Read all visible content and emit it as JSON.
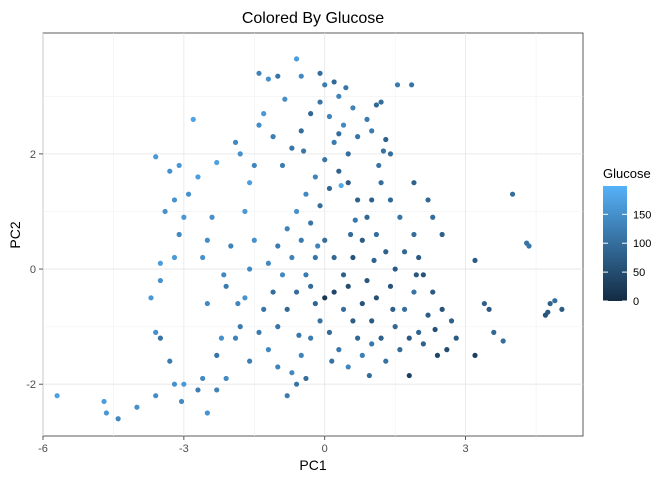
{
  "chart_data": {
    "type": "scatter",
    "title": "Colored By Glucose",
    "xlabel": "PC1",
    "ylabel": "PC2",
    "xlim": [
      -6,
      5.5
    ],
    "ylim": [
      -2.9,
      4.1
    ],
    "x_ticks": [
      -6,
      -3,
      0,
      3
    ],
    "x_tick_labels": [
      "-6",
      "-3",
      "0",
      "3"
    ],
    "y_ticks": [
      -2,
      0,
      2
    ],
    "y_tick_labels": [
      "-2",
      "0",
      "2"
    ],
    "grid": true,
    "legend": {
      "title": "Glucose",
      "position": "right",
      "range": [
        0,
        199
      ],
      "ticks": [
        0,
        50,
        100,
        150
      ],
      "tick_labels": [
        "0",
        "50",
        "100",
        "150"
      ],
      "color_low": "#132b43",
      "color_high": "#56b1f7"
    },
    "points": [
      [
        -5.7,
        -2.2,
        175
      ],
      [
        -4.7,
        -2.3,
        170
      ],
      [
        -4.65,
        -2.5,
        160
      ],
      [
        -4.4,
        -2.6,
        140
      ],
      [
        -4.0,
        -2.4,
        150
      ],
      [
        -3.6,
        -2.2,
        145
      ],
      [
        -3.2,
        -2.0,
        150
      ],
      [
        -3.0,
        -2.0,
        165
      ],
      [
        -3.05,
        -2.3,
        140
      ],
      [
        -2.5,
        -2.5,
        155
      ],
      [
        -2.3,
        -2.1,
        130
      ],
      [
        -2.1,
        -1.9,
        140
      ],
      [
        -3.3,
        -1.6,
        120
      ],
      [
        -3.5,
        -1.2,
        110
      ],
      [
        -3.6,
        -1.1,
        150
      ],
      [
        -3.7,
        -0.5,
        160
      ],
      [
        -3.5,
        -0.2,
        150
      ],
      [
        -3.5,
        0.1,
        170
      ],
      [
        -3.2,
        0.2,
        165
      ],
      [
        -3.1,
        0.6,
        140
      ],
      [
        -3.4,
        1.0,
        150
      ],
      [
        -3.0,
        0.9,
        160
      ],
      [
        -3.2,
        1.2,
        155
      ],
      [
        -2.9,
        1.3,
        150
      ],
      [
        -2.7,
        1.6,
        170
      ],
      [
        -3.3,
        1.7,
        150
      ],
      [
        -3.1,
        1.8,
        160
      ],
      [
        -3.6,
        1.95,
        165
      ],
      [
        -2.8,
        2.6,
        180
      ],
      [
        -2.3,
        1.85,
        175
      ],
      [
        -2.4,
        0.9,
        150
      ],
      [
        -2.5,
        0.5,
        145
      ],
      [
        -2.0,
        0.4,
        130
      ],
      [
        -2.1,
        -0.3,
        120
      ],
      [
        -2.5,
        -0.6,
        140
      ],
      [
        -2.2,
        -1.2,
        150
      ],
      [
        -2.3,
        -1.5,
        110
      ],
      [
        -1.9,
        -1.2,
        130
      ],
      [
        -2.6,
        -1.9,
        140
      ],
      [
        -2.7,
        -2.1,
        125
      ],
      [
        -1.8,
        -1.0,
        120
      ],
      [
        -1.7,
        -0.5,
        155
      ],
      [
        -1.6,
        0.0,
        140
      ],
      [
        -1.5,
        0.5,
        150
      ],
      [
        -1.7,
        1.0,
        160
      ],
      [
        -1.6,
        1.5,
        170
      ],
      [
        -1.8,
        2.0,
        150
      ],
      [
        -1.9,
        2.2,
        140
      ],
      [
        -1.4,
        2.5,
        145
      ],
      [
        -1.3,
        2.7,
        160
      ],
      [
        -1.4,
        3.4,
        130
      ],
      [
        -1.2,
        3.3,
        150
      ],
      [
        -1.0,
        3.35,
        110
      ],
      [
        -0.5,
        3.35,
        140
      ],
      [
        -0.6,
        3.65,
        170
      ],
      [
        -0.1,
        3.4,
        100
      ],
      [
        0.0,
        3.2,
        120
      ],
      [
        0.3,
        3.0,
        130
      ],
      [
        0.45,
        3.15,
        110
      ],
      [
        0.2,
        3.25,
        90
      ],
      [
        1.55,
        3.2,
        120
      ],
      [
        1.85,
        3.2,
        110
      ],
      [
        1.2,
        2.9,
        100
      ],
      [
        1.1,
        2.85,
        90
      ],
      [
        1.0,
        2.4,
        120
      ],
      [
        1.3,
        2.25,
        80
      ],
      [
        1.4,
        2.0,
        100
      ],
      [
        1.15,
        1.8,
        110
      ],
      [
        1.9,
        1.5,
        80
      ],
      [
        2.2,
        1.2,
        90
      ],
      [
        2.3,
        0.9,
        100
      ],
      [
        2.5,
        0.6,
        80
      ],
      [
        2.0,
        0.2,
        70
      ],
      [
        2.1,
        -0.1,
        60
      ],
      [
        2.3,
        -0.4,
        70
      ],
      [
        2.5,
        -0.7,
        60
      ],
      [
        2.7,
        -0.9,
        80
      ],
      [
        2.8,
        -1.2,
        70
      ],
      [
        2.6,
        -1.4,
        50
      ],
      [
        2.4,
        -1.5,
        40
      ],
      [
        3.2,
        -1.5,
        30
      ],
      [
        3.2,
        0.15,
        70
      ],
      [
        3.4,
        -0.6,
        80
      ],
      [
        3.5,
        -0.7,
        70
      ],
      [
        3.6,
        -1.1,
        90
      ],
      [
        3.8,
        -1.25,
        100
      ],
      [
        4.0,
        1.3,
        100
      ],
      [
        4.3,
        0.45,
        110
      ],
      [
        4.35,
        0.4,
        110
      ],
      [
        4.7,
        -0.8,
        60
      ],
      [
        4.75,
        -0.75,
        70
      ],
      [
        4.8,
        -0.6,
        80
      ],
      [
        4.9,
        -0.55,
        100
      ],
      [
        5.05,
        -0.7,
        70
      ],
      [
        1.8,
        -1.85,
        30
      ],
      [
        0.0,
        -0.5,
        20
      ],
      [
        0.2,
        -0.4,
        40
      ],
      [
        0.5,
        -0.3,
        50
      ],
      [
        0.8,
        -0.6,
        60
      ],
      [
        1.0,
        -0.9,
        70
      ],
      [
        1.2,
        -1.2,
        80
      ],
      [
        1.5,
        -1.0,
        90
      ],
      [
        1.7,
        -0.7,
        100
      ],
      [
        1.9,
        -0.4,
        110
      ],
      [
        2.0,
        -1.1,
        85
      ],
      [
        2.2,
        -0.8,
        75
      ],
      [
        1.6,
        -1.4,
        95
      ],
      [
        1.3,
        -1.6,
        105
      ],
      [
        1.0,
        -1.3,
        115
      ],
      [
        0.8,
        -1.5,
        125
      ],
      [
        0.5,
        -1.7,
        135
      ],
      [
        0.3,
        -1.4,
        115
      ],
      [
        0.1,
        -1.1,
        95
      ],
      [
        -0.1,
        -0.9,
        105
      ],
      [
        -0.3,
        -1.2,
        120
      ],
      [
        -0.5,
        -1.5,
        130
      ],
      [
        -0.7,
        -1.8,
        140
      ],
      [
        -0.6,
        -2.0,
        110
      ],
      [
        -0.4,
        -1.9,
        100
      ],
      [
        -0.8,
        -2.2,
        120
      ],
      [
        -1.0,
        -1.7,
        130
      ],
      [
        -1.2,
        -1.4,
        140
      ],
      [
        -1.4,
        -1.1,
        120
      ],
      [
        -1.3,
        -0.7,
        110
      ],
      [
        -1.1,
        -0.4,
        100
      ],
      [
        -0.9,
        -0.1,
        140
      ],
      [
        -0.7,
        0.2,
        130
      ],
      [
        -0.5,
        0.5,
        120
      ],
      [
        -0.3,
        0.8,
        110
      ],
      [
        -0.1,
        1.1,
        100
      ],
      [
        0.1,
        1.4,
        90
      ],
      [
        0.3,
        1.7,
        80
      ],
      [
        0.5,
        2.0,
        100
      ],
      [
        0.7,
        2.3,
        110
      ],
      [
        0.9,
        2.6,
        120
      ],
      [
        0.6,
        2.8,
        130
      ],
      [
        0.4,
        2.5,
        140
      ],
      [
        0.2,
        2.2,
        120
      ],
      [
        0.0,
        1.9,
        110
      ],
      [
        -0.2,
        1.6,
        130
      ],
      [
        -0.4,
        1.3,
        140
      ],
      [
        -0.6,
        1.0,
        150
      ],
      [
        -0.8,
        0.7,
        130
      ],
      [
        -1.0,
        0.4,
        120
      ],
      [
        -1.2,
        0.1,
        140
      ],
      [
        -0.9,
        1.8,
        120
      ],
      [
        -0.7,
        2.1,
        110
      ],
      [
        -0.5,
        2.4,
        100
      ],
      [
        -0.3,
        2.7,
        90
      ],
      [
        -0.1,
        2.9,
        110
      ],
      [
        0.1,
        2.65,
        130
      ],
      [
        0.3,
        2.35,
        100
      ],
      [
        0.5,
        1.5,
        70
      ],
      [
        0.7,
        1.2,
        80
      ],
      [
        0.9,
        0.9,
        90
      ],
      [
        1.1,
        0.6,
        100
      ],
      [
        1.3,
        0.3,
        80
      ],
      [
        1.5,
        0.0,
        70
      ],
      [
        1.7,
        0.3,
        90
      ],
      [
        1.9,
        0.6,
        100
      ],
      [
        1.6,
        0.9,
        110
      ],
      [
        1.4,
        1.2,
        90
      ],
      [
        1.2,
        1.5,
        100
      ],
      [
        1.0,
        1.2,
        80
      ],
      [
        0.8,
        0.5,
        70
      ],
      [
        0.6,
        0.2,
        60
      ],
      [
        0.4,
        -0.1,
        80
      ],
      [
        0.2,
        0.2,
        90
      ],
      [
        0.0,
        0.5,
        100
      ],
      [
        -0.2,
        0.2,
        110
      ],
      [
        -0.4,
        -0.1,
        120
      ],
      [
        -0.6,
        -0.4,
        100
      ],
      [
        -0.8,
        -0.7,
        90
      ],
      [
        -1.0,
        -1.0,
        110
      ],
      [
        -0.2,
        -0.6,
        85
      ],
      [
        0.6,
        -0.9,
        75
      ],
      [
        0.9,
        -0.2,
        65
      ],
      [
        1.1,
        -0.5,
        55
      ],
      [
        1.4,
        -0.3,
        60
      ],
      [
        1.8,
        -1.2,
        70
      ],
      [
        2.1,
        -1.3,
        80
      ],
      [
        0.7,
        -1.2,
        90
      ],
      [
        0.4,
        -0.7,
        100
      ],
      [
        -0.3,
        -0.3,
        95
      ],
      [
        0.35,
        1.45,
        185
      ],
      [
        -0.15,
        0.4,
        130
      ],
      [
        0.65,
        0.85,
        115
      ],
      [
        1.25,
        2.05,
        105
      ],
      [
        -1.5,
        1.8,
        135
      ],
      [
        -1.1,
        2.3,
        125
      ],
      [
        -0.85,
        2.95,
        145
      ],
      [
        -0.45,
        2.05,
        115
      ],
      [
        -1.6,
        -1.6,
        125
      ],
      [
        -1.85,
        -0.6,
        135
      ],
      [
        -2.15,
        -0.1,
        140
      ],
      [
        -2.6,
        0.2,
        150
      ],
      [
        -0.55,
        -1.15,
        115
      ],
      [
        0.15,
        -1.6,
        105
      ],
      [
        0.95,
        -1.85,
        95
      ],
      [
        1.45,
        -0.7,
        75
      ],
      [
        1.95,
        -0.1,
        65
      ],
      [
        2.35,
        -1.05,
        55
      ],
      [
        0.55,
        0.6,
        95
      ],
      [
        1.05,
        0.15,
        85
      ]
    ]
  }
}
